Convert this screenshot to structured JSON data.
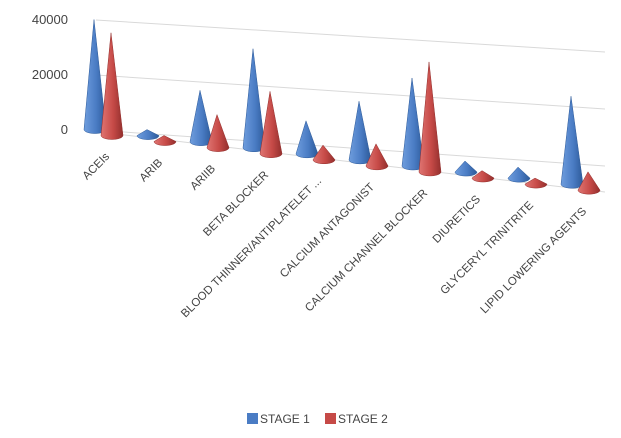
{
  "chart_data": {
    "type": "bar",
    "subtype": "3d-cone",
    "categories": [
      "ACEIs",
      "ARIB",
      "ARIIB",
      "BETA BLOCKER",
      "BLOOD THINNER/ANTIPLATELET ...",
      "CALCIUM ANTAGONIST",
      "CALCIUM CHANNEL BLOCKER",
      "DIURETICS",
      "GLYCERYL TRINITRITE",
      "LIPID LOWERING AGENTS"
    ],
    "series": [
      {
        "name": "STAGE 1",
        "color": "#4a7cc4",
        "values": [
          30000,
          1000,
          14000,
          27000,
          9000,
          16000,
          24000,
          3000,
          3000,
          24000
        ]
      },
      {
        "name": "STAGE 2",
        "color": "#c64a47",
        "values": [
          28000,
          1000,
          9000,
          17000,
          4000,
          6000,
          30000,
          2000,
          1500,
          5000
        ]
      }
    ],
    "yticks": [
      "0",
      "20000",
      "40000"
    ],
    "ylim": [
      0,
      40000
    ],
    "grid": true,
    "legend": "bottom"
  }
}
